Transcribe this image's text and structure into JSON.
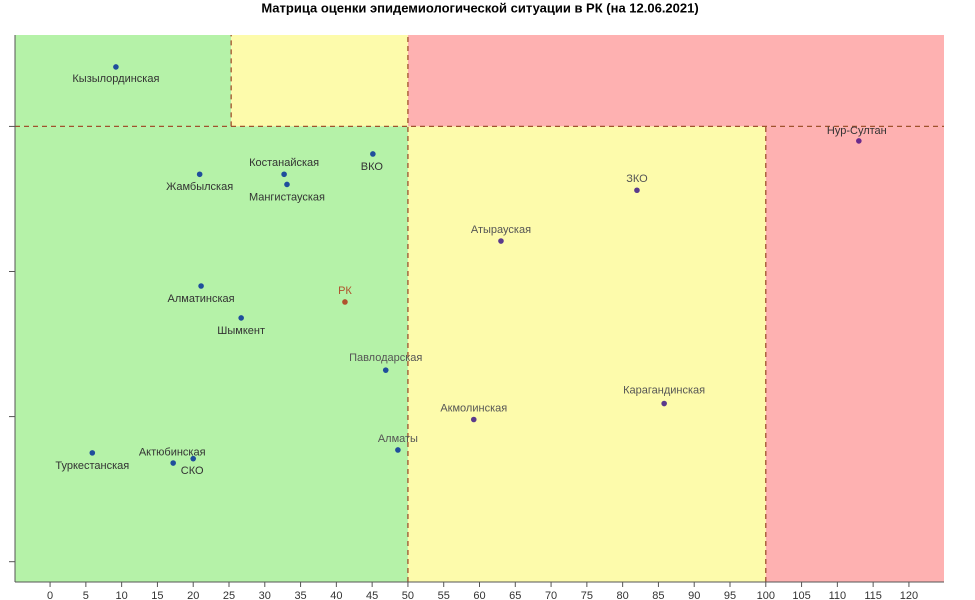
{
  "chart_data": {
    "type": "scatter",
    "title": "Матрица оценки эпидемиологической ситуации в РК (на 12.06.2021)",
    "xlim": [
      -4.9,
      124.9
    ],
    "ylim": [
      -0.14,
      3.63
    ],
    "xticks": [
      0,
      5,
      10,
      15,
      20,
      25,
      30,
      35,
      40,
      45,
      50,
      55,
      60,
      65,
      70,
      75,
      80,
      85,
      90,
      95,
      100,
      105,
      110,
      115,
      120
    ],
    "yticks": [
      0,
      1,
      2,
      3
    ],
    "zones": [
      {
        "x": [
          -4.9,
          25.3
        ],
        "y": [
          3,
          3.63
        ],
        "color": "#b5f2a8"
      },
      {
        "x": [
          25.3,
          50
        ],
        "y": [
          3,
          3.63
        ],
        "color": "#fdfbab"
      },
      {
        "x": [
          50,
          124.9
        ],
        "y": [
          3,
          3.63
        ],
        "color": "#feb1b1"
      },
      {
        "x": [
          -4.9,
          50
        ],
        "y": [
          -0.14,
          3
        ],
        "color": "#b5f2a8"
      },
      {
        "x": [
          50,
          100
        ],
        "y": [
          -0.14,
          3
        ],
        "color": "#fdfbab"
      },
      {
        "x": [
          100,
          124.9
        ],
        "y": [
          -0.14,
          3
        ],
        "color": "#feb1b1"
      }
    ],
    "dividers": [
      {
        "x": [
          25.3,
          25.3
        ],
        "y": [
          3,
          3.63
        ]
      },
      {
        "x": [
          50,
          50
        ],
        "y": [
          -0.14,
          3.63
        ]
      },
      {
        "x": [
          100,
          100
        ],
        "y": [
          -0.14,
          3
        ]
      },
      {
        "x": [
          -4.9,
          124.9
        ],
        "y": [
          3,
          3
        ]
      }
    ],
    "divider_color": "#a0522d",
    "series": [
      {
        "names": [
          "Кызылординская",
          "Нур-Султан",
          "ВКО",
          "Костанайская",
          "Мангистауская",
          "Жамбылская",
          "ЗКО",
          "Атырауская",
          "Алматинская",
          "РК",
          "Шымкент",
          "Павлодарская",
          "Карагандинская",
          "Акмолинская",
          "Алматы",
          "Туркестанская",
          "Актюбинская",
          "СКО"
        ],
        "x": [
          9.2,
          113.0,
          45.1,
          32.7,
          33.1,
          20.9,
          82.0,
          63.0,
          21.1,
          41.2,
          26.7,
          46.9,
          85.8,
          59.2,
          48.6,
          5.9,
          20.0,
          17.2
        ],
        "values": [
          3.41,
          2.9,
          2.81,
          2.67,
          2.6,
          2.67,
          2.56,
          2.21,
          1.9,
          1.79,
          1.68,
          1.32,
          1.09,
          0.98,
          0.77,
          0.75,
          0.71,
          0.68
        ],
        "colors": [
          "#1f4e9c",
          "#6a2a8c",
          "#1f4e9c",
          "#1f4e9c",
          "#1f4e9c",
          "#1f4e9c",
          "#5a3a8c",
          "#5a3a8c",
          "#1f4e9c",
          "#b0522d",
          "#1f4e9c",
          "#1f4e9c",
          "#5a3a8c",
          "#5a3a8c",
          "#1f4e9c",
          "#1f4e9c",
          "#1f4e9c",
          "#1f4e9c"
        ],
        "label_colors": [
          "#333333",
          "#333333",
          "#333333",
          "#333333",
          "#333333",
          "#333333",
          "#555555",
          "#555555",
          "#333333",
          "#b0522d",
          "#333333",
          "#555555",
          "#555555",
          "#555555",
          "#555555",
          "#333333",
          "#333333",
          "#333333"
        ]
      }
    ]
  }
}
